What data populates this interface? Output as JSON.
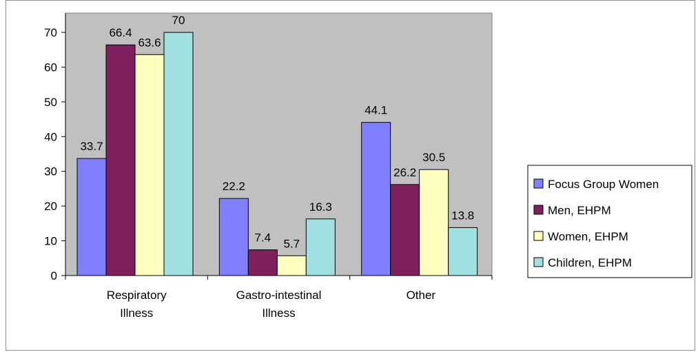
{
  "chart_data": {
    "type": "bar",
    "title": "",
    "xlabel": "",
    "ylabel": "",
    "categories": [
      [
        "Respiratory",
        "Illness"
      ],
      [
        "Gastro-intestinal",
        "Illness"
      ],
      [
        "Other"
      ]
    ],
    "ylim": [
      0,
      70
    ],
    "yticks": [
      0,
      10,
      20,
      30,
      40,
      50,
      60,
      70
    ],
    "grid": false,
    "legend_position": "right",
    "plot_background": "#c0c0c0",
    "series": [
      {
        "name": "Focus Group Women",
        "color": "#8080ff",
        "values": [
          33.7,
          22.2,
          44.1
        ],
        "labels": [
          "33.7",
          "22.2",
          "44.1"
        ]
      },
      {
        "name": "Men, EHPM",
        "color": "#801f5e",
        "values": [
          66.4,
          7.4,
          26.2
        ],
        "labels": [
          "66.4",
          "7.4",
          "26.2"
        ]
      },
      {
        "name": "Women, EHPM",
        "color": "#ffffc0",
        "values": [
          63.6,
          5.7,
          30.5
        ],
        "labels": [
          "63.6",
          "5.7",
          "30.5"
        ]
      },
      {
        "name": "Children, EHPM",
        "color": "#a0e0e0",
        "values": [
          70,
          16.3,
          13.8
        ],
        "labels": [
          "70",
          "16.3",
          "13.8"
        ]
      }
    ]
  }
}
